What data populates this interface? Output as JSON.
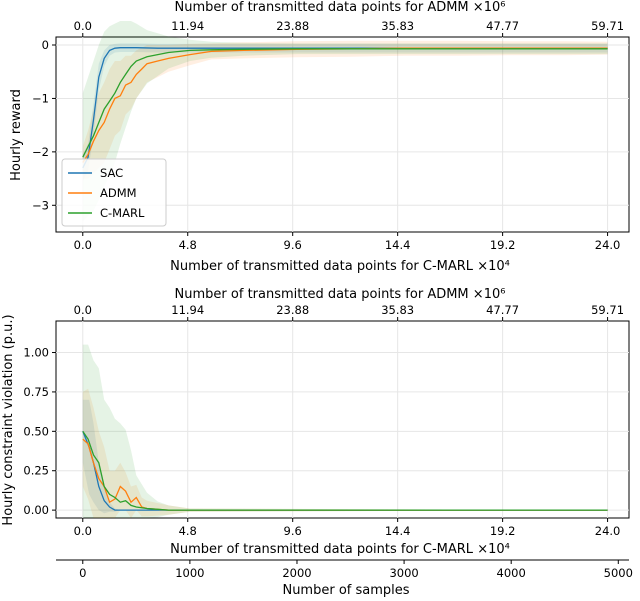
{
  "chart_data": [
    {
      "type": "line",
      "ylabel": "Hourly reward",
      "xlabel": "Number of transmitted data points for C-MARL",
      "xlabel_exp": "×10⁴",
      "top_xlabel": "Number of transmitted data points for ADMM",
      "top_xlabel_exp": "×10⁶",
      "xticks": [
        "0.0",
        "4.8",
        "9.6",
        "14.4",
        "19.2",
        "24.0"
      ],
      "top_xticks": [
        "0.0",
        "11.94",
        "23.88",
        "35.83",
        "47.77",
        "59.71"
      ],
      "xlim": [
        -250,
        5100
      ],
      "ylim": [
        -3.5,
        0.15
      ],
      "yticks": [
        0,
        -1,
        -2,
        -3
      ],
      "ytick_labels": [
        "0",
        "−1",
        "−2",
        "−3"
      ],
      "grid": true,
      "legend": {
        "placement": "lower-left",
        "entries": [
          "SAC",
          "ADMM",
          "C-MARL"
        ]
      },
      "series": [
        {
          "name": "SAC",
          "color": "#1f77b4",
          "x": [
            0,
            50,
            100,
            150,
            200,
            250,
            300,
            350,
            400,
            500,
            700,
            1000,
            1500,
            2000,
            3000,
            4000,
            4900
          ],
          "y": [
            -2.3,
            -2.1,
            -1.4,
            -0.6,
            -0.25,
            -0.1,
            -0.06,
            -0.05,
            -0.05,
            -0.05,
            -0.06,
            -0.06,
            -0.06,
            -0.06,
            -0.06,
            -0.06,
            -0.06
          ],
          "band": [
            0.25,
            0.25,
            0.3,
            0.25,
            0.15,
            0.1,
            0.08,
            0.08,
            0.08,
            0.08,
            0.08,
            0.08,
            0.08,
            0.08,
            0.08,
            0.08,
            0.08
          ]
        },
        {
          "name": "ADMM",
          "color": "#ff7f0e",
          "x": [
            0,
            50,
            100,
            150,
            200,
            250,
            300,
            350,
            400,
            450,
            500,
            550,
            600,
            700,
            800,
            1000,
            1200,
            1500,
            2000,
            2500,
            3000,
            3500,
            4000,
            4500,
            4900
          ],
          "y": [
            -2.2,
            -2.05,
            -1.8,
            -1.6,
            -1.45,
            -1.2,
            -1.0,
            -0.95,
            -0.75,
            -0.7,
            -0.55,
            -0.45,
            -0.35,
            -0.3,
            -0.25,
            -0.18,
            -0.12,
            -0.1,
            -0.08,
            -0.07,
            -0.06,
            -0.06,
            -0.06,
            -0.06,
            -0.06
          ],
          "band": [
            0.3,
            0.45,
            0.6,
            0.7,
            0.75,
            0.75,
            0.7,
            0.65,
            0.55,
            0.5,
            0.45,
            0.4,
            0.35,
            0.3,
            0.25,
            0.2,
            0.15,
            0.15,
            0.15,
            0.15,
            0.14,
            0.14,
            0.13,
            0.13,
            0.12
          ]
        },
        {
          "name": "C-MARL",
          "color": "#2ca02c",
          "x": [
            0,
            50,
            100,
            150,
            200,
            250,
            300,
            350,
            400,
            450,
            500,
            600,
            700,
            800,
            1000,
            1200,
            1500,
            2000,
            2500,
            3000,
            3500,
            4000,
            4500,
            4900
          ],
          "y": [
            -2.1,
            -1.9,
            -1.7,
            -1.45,
            -1.2,
            -1.05,
            -0.9,
            -0.7,
            -0.55,
            -0.4,
            -0.3,
            -0.22,
            -0.18,
            -0.14,
            -0.1,
            -0.09,
            -0.08,
            -0.07,
            -0.07,
            -0.07,
            -0.07,
            -0.07,
            -0.07,
            -0.07
          ],
          "band": [
            1.2,
            1.3,
            1.4,
            1.45,
            1.45,
            1.4,
            1.3,
            1.15,
            1.0,
            0.85,
            0.7,
            0.5,
            0.4,
            0.3,
            0.2,
            0.15,
            0.12,
            0.1,
            0.1,
            0.1,
            0.1,
            0.1,
            0.1,
            0.1
          ]
        }
      ]
    },
    {
      "type": "line",
      "ylabel": "Hourly constraint violation (p.u.)",
      "xlabel": "Number of transmitted data points for C-MARL",
      "xlabel_exp": "×10⁴",
      "top_xlabel": "Number of transmitted data points for ADMM",
      "top_xlabel_exp": "×10⁶",
      "bottom2_xlabel": "Number of samples",
      "xticks": [
        "0.0",
        "4.8",
        "9.6",
        "14.4",
        "19.2",
        "24.0"
      ],
      "top_xticks": [
        "0.0",
        "11.94",
        "23.88",
        "35.83",
        "47.77",
        "59.71"
      ],
      "bottom2_xticks": [
        0,
        1000,
        2000,
        3000,
        4000,
        5000
      ],
      "xlim": [
        -250,
        5100
      ],
      "ylim": [
        -0.05,
        1.2
      ],
      "yticks": [
        0.0,
        0.25,
        0.5,
        0.75,
        1.0
      ],
      "ytick_labels": [
        "0.00",
        "0.25",
        "0.50",
        "0.75",
        "1.00"
      ],
      "grid": true,
      "series": [
        {
          "name": "SAC",
          "color": "#1f77b4",
          "x": [
            0,
            30,
            60,
            100,
            150,
            200,
            250,
            300,
            350,
            400,
            4900
          ],
          "y": [
            0.5,
            0.45,
            0.4,
            0.3,
            0.15,
            0.06,
            0.02,
            0.0,
            0.0,
            0.0,
            0.0
          ],
          "band": [
            0.2,
            0.25,
            0.3,
            0.25,
            0.15,
            0.08,
            0.03,
            0.01,
            0.0,
            0.0,
            0.0
          ]
        },
        {
          "name": "ADMM",
          "color": "#ff7f0e",
          "x": [
            0,
            50,
            100,
            150,
            200,
            250,
            300,
            350,
            400,
            450,
            500,
            550,
            600,
            800,
            1000,
            4900
          ],
          "y": [
            0.45,
            0.42,
            0.3,
            0.2,
            0.15,
            0.05,
            0.07,
            0.15,
            0.12,
            0.05,
            0.08,
            0.02,
            0.01,
            0.0,
            0.0,
            0.0
          ],
          "band": [
            0.3,
            0.35,
            0.35,
            0.3,
            0.25,
            0.2,
            0.18,
            0.15,
            0.12,
            0.1,
            0.08,
            0.06,
            0.05,
            0.03,
            0.01,
            0.0
          ]
        },
        {
          "name": "C-MARL",
          "color": "#2ca02c",
          "x": [
            0,
            50,
            100,
            150,
            200,
            250,
            300,
            350,
            400,
            450,
            500,
            600,
            700,
            800,
            1000,
            4900
          ],
          "y": [
            0.5,
            0.45,
            0.35,
            0.3,
            0.15,
            0.1,
            0.08,
            0.05,
            0.06,
            0.03,
            0.02,
            0.01,
            0.005,
            0.0,
            0.0,
            0.0
          ],
          "band": [
            0.55,
            0.6,
            0.6,
            0.6,
            0.55,
            0.55,
            0.5,
            0.5,
            0.45,
            0.35,
            0.2,
            0.1,
            0.05,
            0.03,
            0.01,
            0.0
          ]
        }
      ]
    }
  ]
}
